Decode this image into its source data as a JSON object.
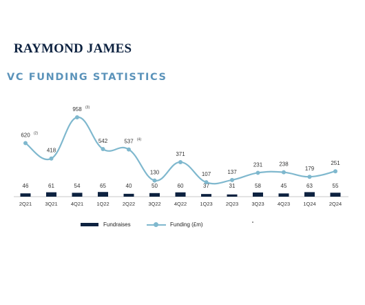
{
  "header": {
    "logo_text": "RAYMOND JAMES",
    "title": "VC FUNDING STATISTICS"
  },
  "colors": {
    "navy": "#0d2240",
    "line": "#7fb8ce",
    "title": "#5b93ba"
  },
  "chart_data": {
    "type": "bar+line",
    "categories": [
      "2Q21",
      "3Q21",
      "4Q21",
      "1Q22",
      "2Q22",
      "3Q22",
      "4Q22",
      "1Q23",
      "2Q23",
      "3Q23",
      "4Q23",
      "1Q24",
      "2Q24"
    ],
    "series": [
      {
        "name": "Fundraises",
        "type": "bar",
        "values": [
          46,
          61,
          54,
          65,
          40,
          50,
          60,
          37,
          31,
          58,
          45,
          63,
          55
        ]
      },
      {
        "name": "Funding (£m)",
        "type": "line",
        "values": [
          620,
          418,
          958,
          542,
          537,
          130,
          371,
          107,
          137,
          231,
          238,
          179,
          251
        ]
      }
    ],
    "footnotes": [
      {
        "category": "2Q21",
        "text": "(2)"
      },
      {
        "category": "4Q21",
        "text": "(3)"
      },
      {
        "category": "2Q22",
        "text": "(4)"
      }
    ],
    "legend_position": "bottom",
    "grid": false
  }
}
